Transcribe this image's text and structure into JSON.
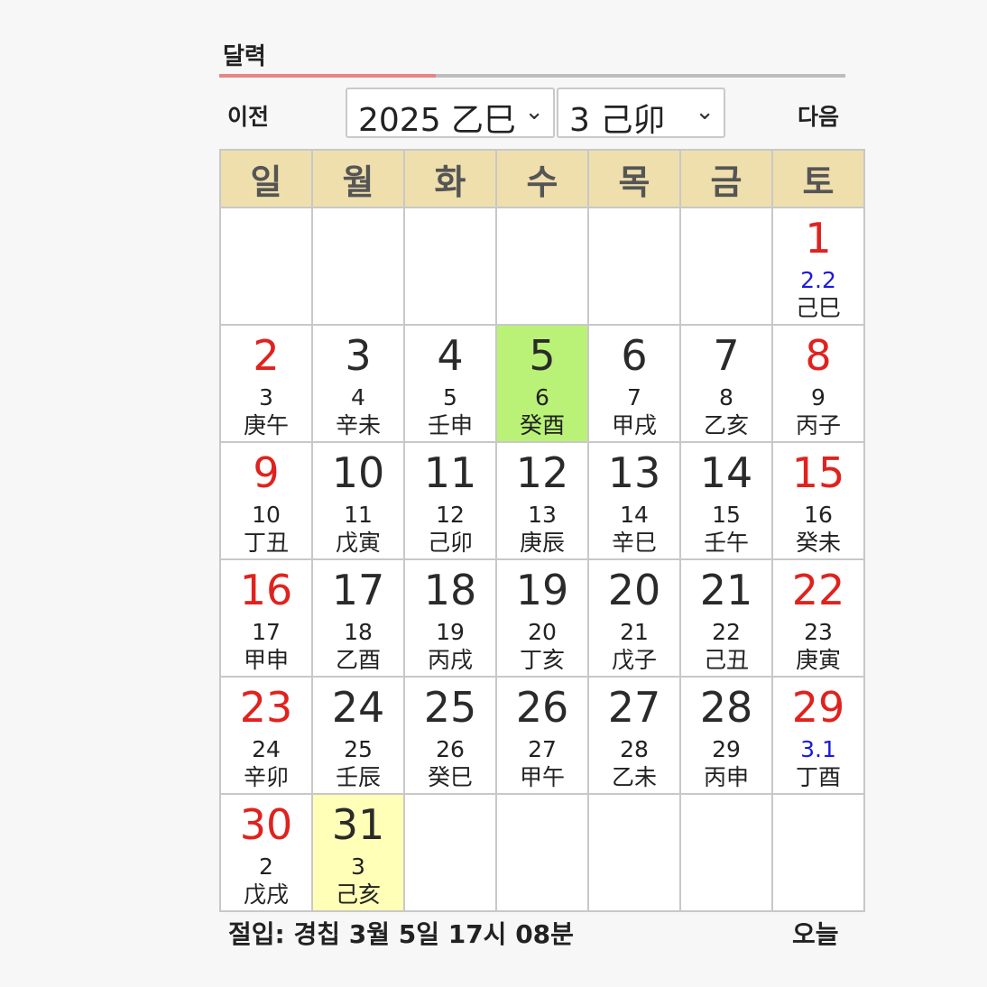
{
  "header": {
    "title": "달력"
  },
  "nav": {
    "prev_label": "이전",
    "next_label": "다음",
    "year_select": "2025 乙巳",
    "month_select": "3 己卯"
  },
  "weekdays": [
    "일",
    "월",
    "화",
    "수",
    "목",
    "금",
    "토"
  ],
  "weeks": [
    [
      null,
      null,
      null,
      null,
      null,
      null,
      {
        "solar": "1",
        "lunar": "2.2",
        "ganji": "己巳",
        "red": true,
        "month_start": true
      }
    ],
    [
      {
        "solar": "2",
        "lunar": "3",
        "ganji": "庚午",
        "red": true
      },
      {
        "solar": "3",
        "lunar": "4",
        "ganji": "辛未"
      },
      {
        "solar": "4",
        "lunar": "5",
        "ganji": "壬申"
      },
      {
        "solar": "5",
        "lunar": "6",
        "ganji": "癸酉",
        "today": true
      },
      {
        "solar": "6",
        "lunar": "7",
        "ganji": "甲戌"
      },
      {
        "solar": "7",
        "lunar": "8",
        "ganji": "乙亥"
      },
      {
        "solar": "8",
        "lunar": "9",
        "ganji": "丙子",
        "red": true
      }
    ],
    [
      {
        "solar": "9",
        "lunar": "10",
        "ganji": "丁丑",
        "red": true
      },
      {
        "solar": "10",
        "lunar": "11",
        "ganji": "戊寅"
      },
      {
        "solar": "11",
        "lunar": "12",
        "ganji": "己卯"
      },
      {
        "solar": "12",
        "lunar": "13",
        "ganji": "庚辰"
      },
      {
        "solar": "13",
        "lunar": "14",
        "ganji": "辛巳"
      },
      {
        "solar": "14",
        "lunar": "15",
        "ganji": "壬午"
      },
      {
        "solar": "15",
        "lunar": "16",
        "ganji": "癸未",
        "red": true
      }
    ],
    [
      {
        "solar": "16",
        "lunar": "17",
        "ganji": "甲申",
        "red": true
      },
      {
        "solar": "17",
        "lunar": "18",
        "ganji": "乙酉"
      },
      {
        "solar": "18",
        "lunar": "19",
        "ganji": "丙戌"
      },
      {
        "solar": "19",
        "lunar": "20",
        "ganji": "丁亥"
      },
      {
        "solar": "20",
        "lunar": "21",
        "ganji": "戊子"
      },
      {
        "solar": "21",
        "lunar": "22",
        "ganji": "己丑"
      },
      {
        "solar": "22",
        "lunar": "23",
        "ganji": "庚寅",
        "red": true
      }
    ],
    [
      {
        "solar": "23",
        "lunar": "24",
        "ganji": "辛卯",
        "red": true
      },
      {
        "solar": "24",
        "lunar": "25",
        "ganji": "壬辰"
      },
      {
        "solar": "25",
        "lunar": "26",
        "ganji": "癸巳"
      },
      {
        "solar": "26",
        "lunar": "27",
        "ganji": "甲午"
      },
      {
        "solar": "27",
        "lunar": "28",
        "ganji": "乙未"
      },
      {
        "solar": "28",
        "lunar": "29",
        "ganji": "丙申"
      },
      {
        "solar": "29",
        "lunar": "3.1",
        "ganji": "丁酉",
        "red": true,
        "month_start": true
      }
    ],
    [
      {
        "solar": "30",
        "lunar": "2",
        "ganji": "戊戌",
        "red": true
      },
      {
        "solar": "31",
        "lunar": "3",
        "ganji": "己亥",
        "selected": true
      },
      null,
      null,
      null,
      null,
      null
    ]
  ],
  "footer": {
    "jeolip": "절입: 경칩 3월 5일 17시 08분",
    "today_label": "오늘"
  },
  "colors": {
    "header_bg": "#efdfad",
    "today_bg": "#b9f277",
    "selected_bg": "#ffffb8",
    "holiday_red": "#e0221e",
    "lunar_month_blue": "#1a1add",
    "tab_active": "#e78585"
  }
}
